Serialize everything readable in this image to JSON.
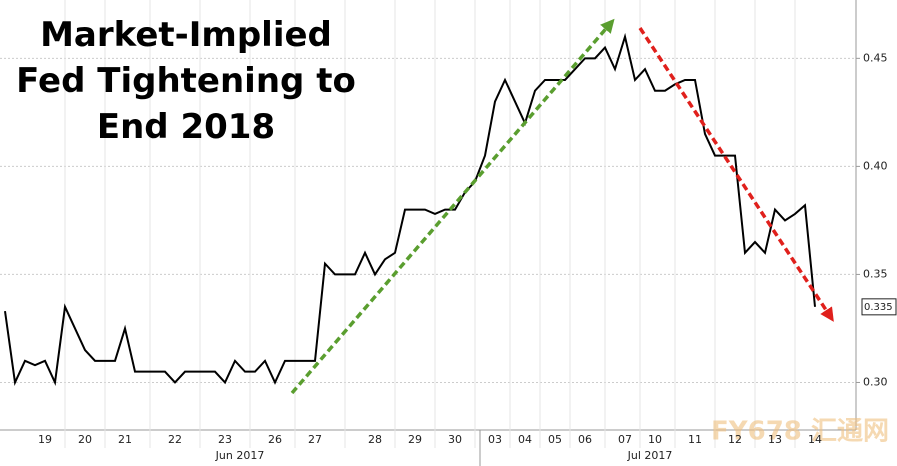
{
  "chart_data": {
    "type": "line",
    "title": "Market-Implied Fed Tightening to End 2018",
    "categories": [
      null,
      null,
      null,
      null,
      "19",
      null,
      null,
      null,
      "20",
      null,
      null,
      null,
      "21",
      null,
      null,
      null,
      null,
      "22",
      null,
      null,
      null,
      null,
      "23",
      null,
      null,
      null,
      null,
      "26",
      null,
      null,
      null,
      "27",
      null,
      null,
      null,
      null,
      null,
      "28",
      null,
      null,
      null,
      "29",
      null,
      null,
      null,
      "30",
      null,
      null,
      null,
      "03",
      null,
      null,
      "04",
      null,
      null,
      "05",
      null,
      null,
      "06",
      null,
      null,
      null,
      "07",
      null,
      null,
      "10",
      null,
      null,
      null,
      "11",
      null,
      null,
      null,
      "12",
      null,
      null,
      null,
      "13",
      null,
      null,
      null,
      "14"
    ],
    "x_group_labels": [
      "Jun 2017",
      "Jul 2017"
    ],
    "series": [
      {
        "color": "#000000",
        "values": [
          0.333,
          0.3,
          0.31,
          0.308,
          0.31,
          0.3,
          0.335,
          0.325,
          0.315,
          0.31,
          0.31,
          0.31,
          0.325,
          0.305,
          0.305,
          0.305,
          0.305,
          0.3,
          0.305,
          0.305,
          0.305,
          0.305,
          0.3,
          0.31,
          0.305,
          0.305,
          0.31,
          0.3,
          0.31,
          0.31,
          0.31,
          0.31,
          0.355,
          0.35,
          0.35,
          0.35,
          0.36,
          0.35,
          0.357,
          0.36,
          0.38,
          0.38,
          0.38,
          0.378,
          0.38,
          0.38,
          0.388,
          0.393,
          0.405,
          0.43,
          0.44,
          0.43,
          0.42,
          0.435,
          0.44,
          0.44,
          0.44,
          0.445,
          0.45,
          0.45,
          0.455,
          0.445,
          0.46,
          0.44,
          0.445,
          0.435,
          0.435,
          0.438,
          0.44,
          0.44,
          0.415,
          0.405,
          0.405,
          0.405,
          0.36,
          0.365,
          0.36,
          0.38,
          0.375,
          0.378,
          0.382,
          0.335
        ]
      }
    ],
    "ylim": [
      0.278,
      0.477
    ],
    "yticks": [
      {
        "value": 0.3,
        "label": "0.30"
      },
      0.35,
      {
        "value": 0.4,
        "label": "0.40"
      },
      0.45
    ],
    "grid": true,
    "watermark": "FY678 汇通网"
  }
}
